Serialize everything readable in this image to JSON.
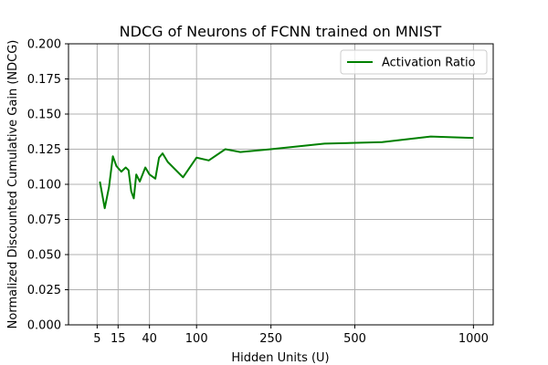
{
  "chart_data": {
    "type": "line",
    "title": "NDCG of Neurons of FCNN trained on MNIST",
    "xlabel": "Hidden Units (U)",
    "ylabel": "Normalized Discounted Cumulative Gain (NDCG)",
    "x_scale": "sqrt",
    "xlim": [
      0,
      1100
    ],
    "ylim": [
      0,
      0.2
    ],
    "x_ticks": [
      5,
      15,
      40,
      100,
      250,
      500,
      1000
    ],
    "y_ticks": [
      0.0,
      0.025,
      0.05,
      0.075,
      0.1,
      0.125,
      0.15,
      0.175,
      0.2
    ],
    "y_tick_labels": [
      "0.000",
      "0.025",
      "0.050",
      "0.075",
      "0.100",
      "0.125",
      "0.150",
      "0.175",
      "0.200"
    ],
    "grid": true,
    "legend_position": "top-right",
    "series": [
      {
        "name": "Activation Ratio",
        "color": "#008000",
        "x": [
          6,
          8,
          10,
          12,
          14,
          17,
          20,
          22,
          24,
          26,
          28,
          31,
          36,
          40,
          46,
          50,
          54,
          60,
          80,
          100,
          120,
          150,
          180,
          250,
          400,
          600,
          800,
          1000
        ],
        "y": [
          0.102,
          0.083,
          0.098,
          0.12,
          0.113,
          0.109,
          0.112,
          0.11,
          0.095,
          0.09,
          0.107,
          0.102,
          0.112,
          0.107,
          0.104,
          0.119,
          0.122,
          0.116,
          0.105,
          0.119,
          0.117,
          0.125,
          0.123,
          0.125,
          0.129,
          0.13,
          0.134,
          0.133
        ]
      }
    ]
  }
}
